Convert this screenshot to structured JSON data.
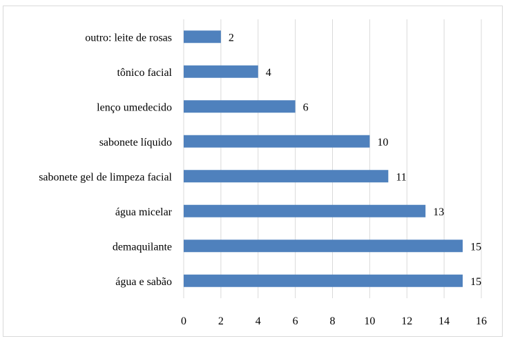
{
  "chart_data": {
    "type": "bar",
    "orientation": "horizontal",
    "categories": [
      "outro: leite de rosas",
      "tônico facial",
      "lenço umedecido",
      "sabonete líquido",
      "sabonete gel de limpeza facial",
      "água micelar",
      "demaquilante",
      "água e sabão"
    ],
    "values": [
      2,
      4,
      6,
      10,
      11,
      13,
      15,
      15
    ],
    "xlim": [
      0,
      16
    ],
    "xticks": [
      0,
      2,
      4,
      6,
      8,
      10,
      12,
      14,
      16
    ],
    "grid": "vertical",
    "data_labels": true,
    "bar_color": "#4f81bd",
    "grid_color": "#d9d9d9"
  }
}
